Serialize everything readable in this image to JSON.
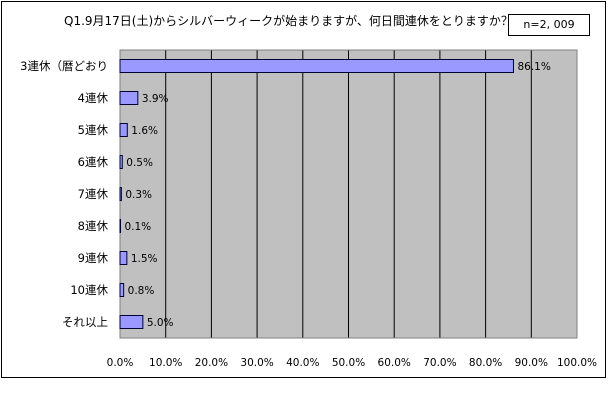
{
  "chart_data": {
    "type": "bar",
    "orientation": "horizontal",
    "title": "Q1.9月17日(土)からシルバーウィークが始まりますが、何日間連休をとりますか？",
    "note": "n=2, 009",
    "categories": [
      "3連休（暦どおり",
      "4連休",
      "5連休",
      "6連休",
      "7連休",
      "8連休",
      "9連休",
      "10連休",
      "それ以上"
    ],
    "values": [
      86.1,
      3.9,
      1.6,
      0.5,
      0.3,
      0.1,
      1.5,
      0.8,
      5.0
    ],
    "value_labels": [
      "86.1%",
      "3.9%",
      "1.6%",
      "0.5%",
      "0.3%",
      "0.1%",
      "1.5%",
      "0.8%",
      "5.0%"
    ],
    "xlim": [
      0,
      100
    ],
    "x_ticks": [
      "0.0%",
      "10.0%",
      "20.0%",
      "30.0%",
      "40.0%",
      "50.0%",
      "60.0%",
      "70.0%",
      "80.0%",
      "90.0%",
      "100.0%"
    ],
    "grid": true,
    "colors": {
      "bar": "#9999ff",
      "bar_border": "#000033",
      "plot_bg": "#c0c0c0",
      "grid": "#000000"
    }
  }
}
